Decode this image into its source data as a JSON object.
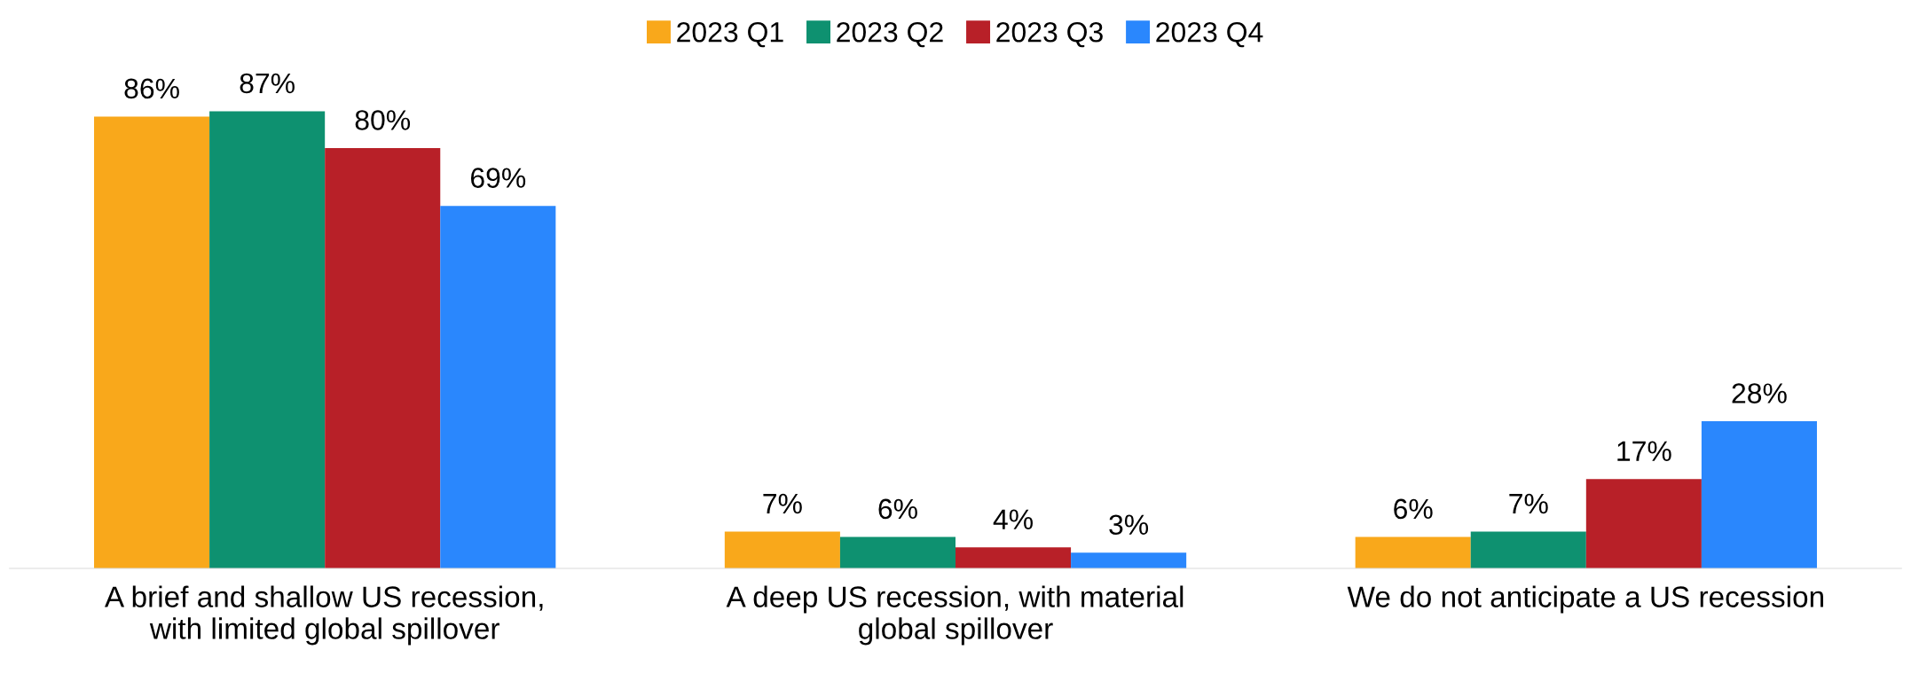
{
  "chart_data": {
    "type": "bar",
    "categories": [
      "A brief and shallow US recession,\nwith limited global spillover",
      "A deep US recession, with material\nglobal spillover",
      "We do not anticipate a US recession"
    ],
    "series": [
      {
        "name": "2023 Q1",
        "color": "#f9a81b",
        "values": [
          86,
          7,
          6
        ],
        "value_labels": [
          "86%",
          "7%",
          "6%"
        ]
      },
      {
        "name": "2023 Q2",
        "color": "#0e9170",
        "values": [
          87,
          6,
          7
        ],
        "value_labels": [
          "87%",
          "6%",
          "7%"
        ]
      },
      {
        "name": "2023 Q3",
        "color": "#b82028",
        "values": [
          80,
          4,
          17
        ],
        "value_labels": [
          "80%",
          "4%",
          "17%"
        ]
      },
      {
        "name": "2023 Q4",
        "color": "#2a87fd",
        "values": [
          69,
          3,
          28
        ],
        "value_labels": [
          "69%",
          "3%",
          "28%"
        ]
      }
    ],
    "legend": "top",
    "grid": false,
    "tick_labels": "x"
  }
}
